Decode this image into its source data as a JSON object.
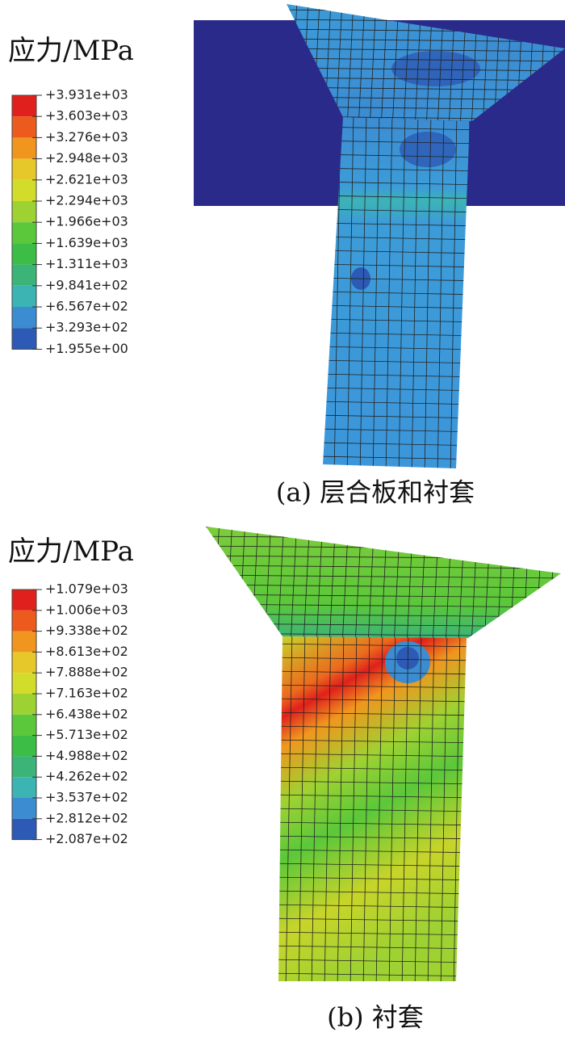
{
  "panels": [
    {
      "legend_title": "应力/MPa",
      "legend_labels": [
        "+3.931e+03",
        "+3.603e+03",
        "+3.276e+03",
        "+2.948e+03",
        "+2.621e+03",
        "+2.294e+03",
        "+1.966e+03",
        "+1.639e+03",
        "+1.311e+03",
        "+9.841e+02",
        "+6.567e+02",
        "+3.293e+02",
        "+1.955e+00"
      ],
      "caption": "(a) 层合板和衬套"
    },
    {
      "legend_title": "应力/MPa",
      "legend_labels": [
        "+1.079e+03",
        "+1.006e+03",
        "+9.338e+02",
        "+8.613e+02",
        "+7.888e+02",
        "+7.163e+02",
        "+6.438e+02",
        "+5.713e+02",
        "+4.988e+02",
        "+4.262e+02",
        "+3.537e+02",
        "+2.812e+02",
        "+2.087e+02"
      ],
      "caption": "(b) 衬套"
    }
  ],
  "legend_colors": [
    "#e0201c",
    "#ec5a1e",
    "#f0961e",
    "#e6c82a",
    "#d2dc2a",
    "#9ed232",
    "#5ac83a",
    "#3cbe46",
    "#3cb478",
    "#3cb4b4",
    "#3c8cd2",
    "#2c5ab4",
    "#28288c"
  ]
}
